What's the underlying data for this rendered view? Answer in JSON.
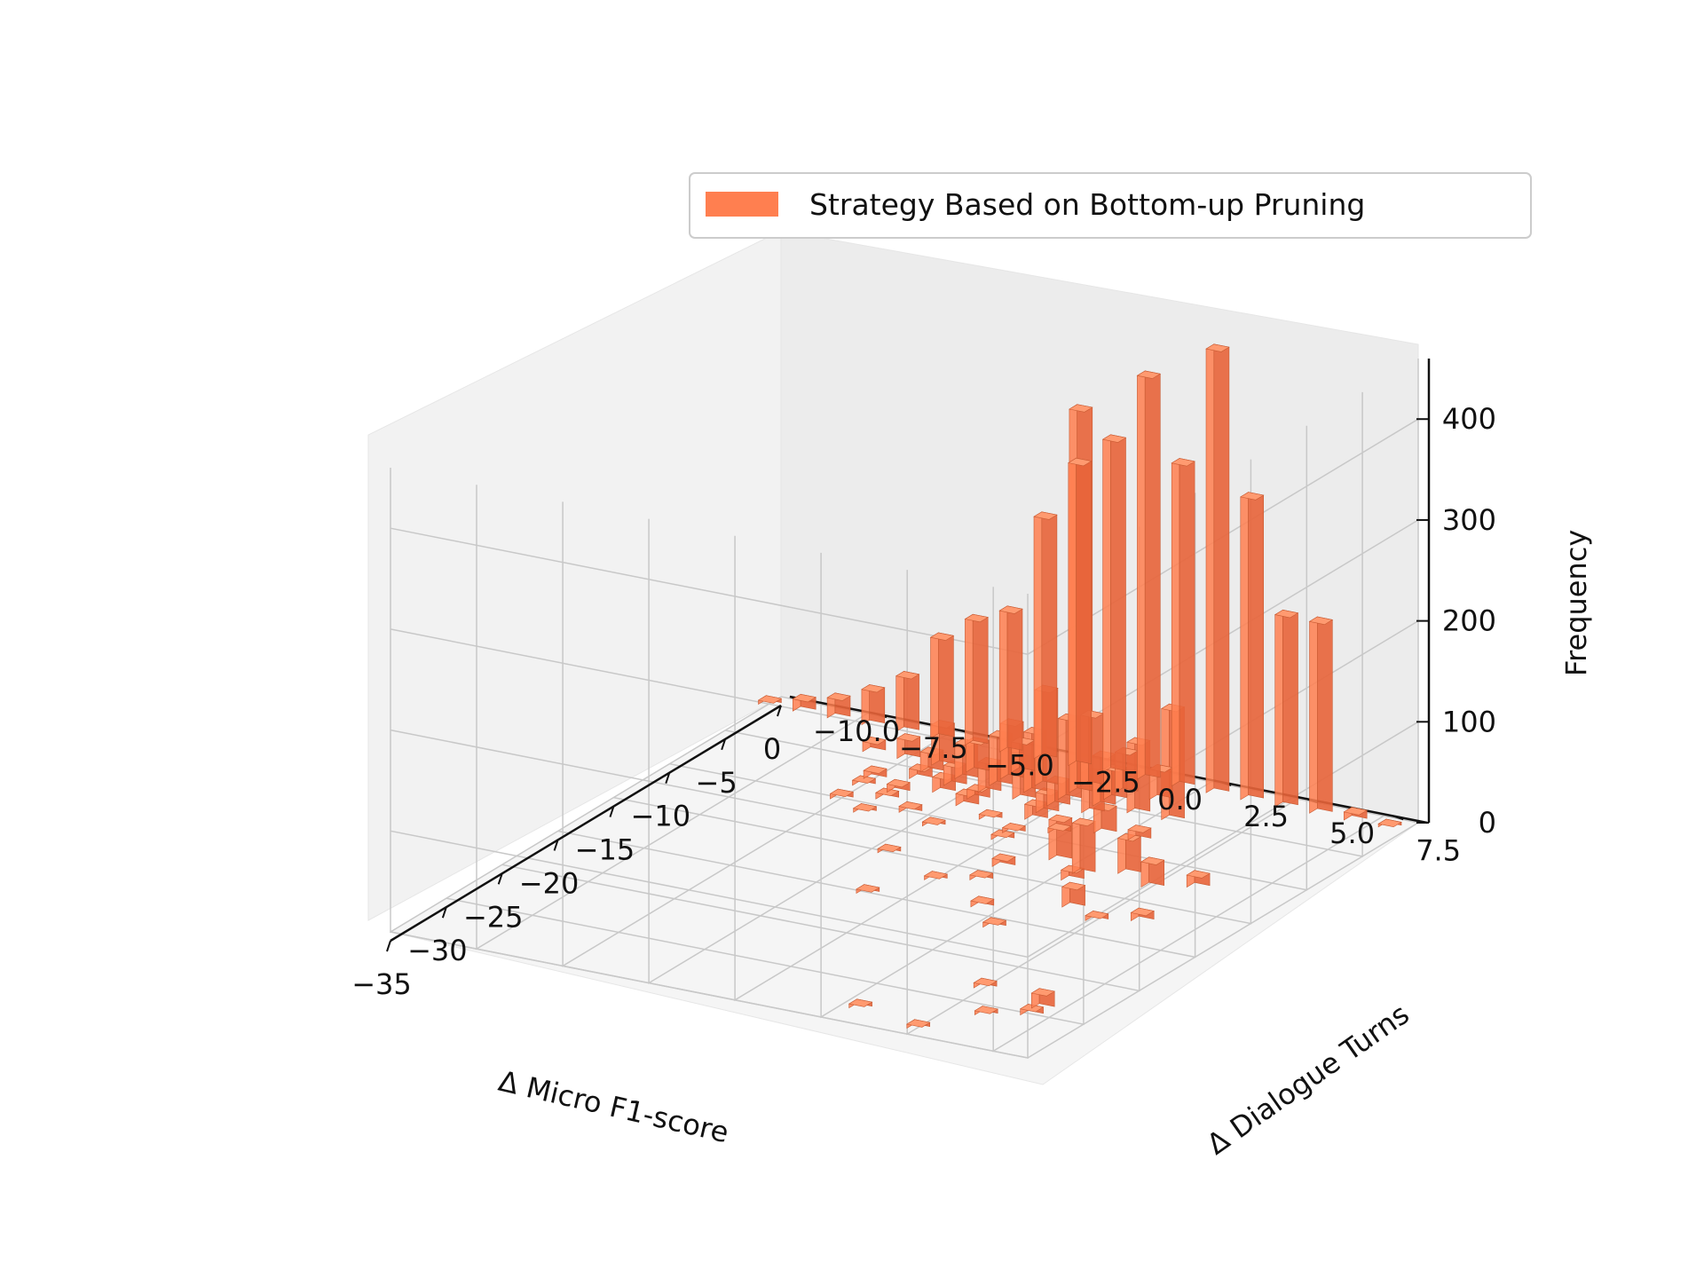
{
  "chart_data": {
    "type": "bar",
    "projection": "3d",
    "grid": true,
    "legend_placement": "top-right",
    "series": [
      {
        "name": "Strategy Based on Bottom-up Pruning",
        "color": "#ff7f50",
        "bars": [
          {
            "x": -1,
            "y": -10,
            "z": 4
          },
          {
            "x": -1,
            "y": -9,
            "z": 12
          },
          {
            "x": -1,
            "y": -8,
            "z": 20
          },
          {
            "x": -1,
            "y": -7,
            "z": 35
          },
          {
            "x": -1,
            "y": -6,
            "z": 55
          },
          {
            "x": -1,
            "y": -5,
            "z": 100
          },
          {
            "x": -1,
            "y": -4,
            "z": 125
          },
          {
            "x": -1,
            "y": -3,
            "z": 140
          },
          {
            "x": -1,
            "y": -2,
            "z": 240
          },
          {
            "x": -1,
            "y": -1,
            "z": 300
          },
          {
            "x": -1,
            "y": 0,
            "z": 330
          },
          {
            "x": -1,
            "y": 1,
            "z": 400
          },
          {
            "x": -1,
            "y": 2,
            "z": 320
          },
          {
            "x": -1,
            "y": 3,
            "z": 440
          },
          {
            "x": -1,
            "y": 4,
            "z": 300
          },
          {
            "x": -1,
            "y": 5,
            "z": 190
          },
          {
            "x": -1,
            "y": 6,
            "z": 190
          },
          {
            "x": -1,
            "y": 7,
            "z": 8
          },
          {
            "x": -1,
            "y": 8,
            "z": 3
          },
          {
            "x": -4,
            "y": -6,
            "z": 10
          },
          {
            "x": -4,
            "y": -5,
            "z": 20
          },
          {
            "x": -4,
            "y": -4,
            "z": 40
          },
          {
            "x": -4,
            "y": -3,
            "z": 30
          },
          {
            "x": -4,
            "y": -2,
            "z": 55
          },
          {
            "x": -4,
            "y": -1,
            "z": 95
          },
          {
            "x": -4,
            "y": 0,
            "z": 380
          },
          {
            "x": -4,
            "y": 1,
            "z": 30
          },
          {
            "x": -3,
            "y": -2,
            "z": 30
          },
          {
            "x": -3,
            "y": 0,
            "z": 70
          },
          {
            "x": -3,
            "y": 1,
            "z": 40
          },
          {
            "x": -3,
            "y": 2,
            "z": 30
          },
          {
            "x": -5,
            "y": -4,
            "z": 20
          },
          {
            "x": -5,
            "y": -3,
            "z": 35
          },
          {
            "x": -5,
            "y": -2,
            "z": 50
          },
          {
            "x": -5,
            "y": -1,
            "z": 60
          },
          {
            "x": -5,
            "y": 0,
            "z": 80
          },
          {
            "x": -5,
            "y": 1,
            "z": 50
          },
          {
            "x": -5,
            "y": 2,
            "z": 70
          },
          {
            "x": -5,
            "y": 3,
            "z": 110
          },
          {
            "x": -6,
            "y": -4,
            "z": 10
          },
          {
            "x": -6,
            "y": -3,
            "z": 20
          },
          {
            "x": -6,
            "y": -2,
            "z": 30
          },
          {
            "x": -6,
            "y": -1,
            "z": 40
          },
          {
            "x": -6,
            "y": 0,
            "z": 25
          },
          {
            "x": -6,
            "y": 1,
            "z": 40
          },
          {
            "x": -7,
            "y": -5,
            "z": 8
          },
          {
            "x": -7,
            "y": -3,
            "z": 15
          },
          {
            "x": -7,
            "y": -2,
            "z": 10
          },
          {
            "x": -7,
            "y": 0,
            "z": 20
          },
          {
            "x": -8,
            "y": -5,
            "z": 5
          },
          {
            "x": -8,
            "y": -4,
            "z": 8
          },
          {
            "x": -8,
            "y": -2,
            "z": 12
          },
          {
            "x": -8,
            "y": 0,
            "z": 15
          },
          {
            "x": -8,
            "y": 2,
            "z": 25
          },
          {
            "x": -8,
            "y": 3,
            "z": 10
          },
          {
            "x": -9,
            "y": -4,
            "z": 6
          },
          {
            "x": -9,
            "y": -1,
            "z": 5
          },
          {
            "x": -9,
            "y": 1,
            "z": 5
          },
          {
            "x": -10,
            "y": -5,
            "z": 5
          },
          {
            "x": -10,
            "y": -3,
            "z": 6
          },
          {
            "x": -10,
            "y": 0,
            "z": 5
          },
          {
            "x": -11,
            "y": -4,
            "z": 4
          },
          {
            "x": -11,
            "y": -2,
            "z": 4
          },
          {
            "x": -11,
            "y": 0,
            "z": 5
          },
          {
            "x": -12,
            "y": 2,
            "z": 40
          },
          {
            "x": -12,
            "y": 4,
            "z": 35
          },
          {
            "x": -12,
            "y": 6,
            "z": 12
          },
          {
            "x": -13,
            "y": 3,
            "z": 50
          },
          {
            "x": -13,
            "y": 5,
            "z": 25
          },
          {
            "x": -14,
            "y": 1,
            "z": 8
          },
          {
            "x": -14,
            "y": 3,
            "z": 10
          },
          {
            "x": -15,
            "y": -2,
            "z": 4
          },
          {
            "x": -16,
            "y": 1,
            "z": 5
          },
          {
            "x": -17,
            "y": 0,
            "z": 4
          },
          {
            "x": -17,
            "y": 4,
            "z": 20
          },
          {
            "x": -17,
            "y": 6,
            "z": 8
          },
          {
            "x": -18,
            "y": 5,
            "z": 5
          },
          {
            "x": -19,
            "y": 2,
            "z": 6
          },
          {
            "x": -20,
            "y": -1,
            "z": 4
          },
          {
            "x": -21,
            "y": 3,
            "z": 5
          },
          {
            "x": -28,
            "y": 5,
            "z": 5
          },
          {
            "x": -29,
            "y": 7,
            "z": 15
          },
          {
            "x": -30,
            "y": 7,
            "z": 6
          },
          {
            "x": -31,
            "y": 6,
            "z": 4
          },
          {
            "x": -33,
            "y": 3,
            "z": 4
          },
          {
            "x": -34,
            "y": 5,
            "z": 4
          }
        ]
      }
    ],
    "xlabel": "Δ Micro F1-score",
    "ylabel": "Δ Dialogue Turns",
    "zlabel": "Frequency",
    "xlim": [
      -35,
      0
    ],
    "ylim": [
      -10,
      8.5
    ],
    "zlim": [
      0,
      460
    ],
    "xticks": [
      "−35",
      "−30",
      "−25",
      "−20",
      "−15",
      "−10",
      "−5",
      "0"
    ],
    "yticks": [
      "−10.0",
      "−7.5",
      "−5.0",
      "−2.5",
      "0.0",
      "2.5",
      "5.0",
      "7.5"
    ],
    "zticks": [
      "0",
      "100",
      "200",
      "300",
      "400"
    ]
  }
}
